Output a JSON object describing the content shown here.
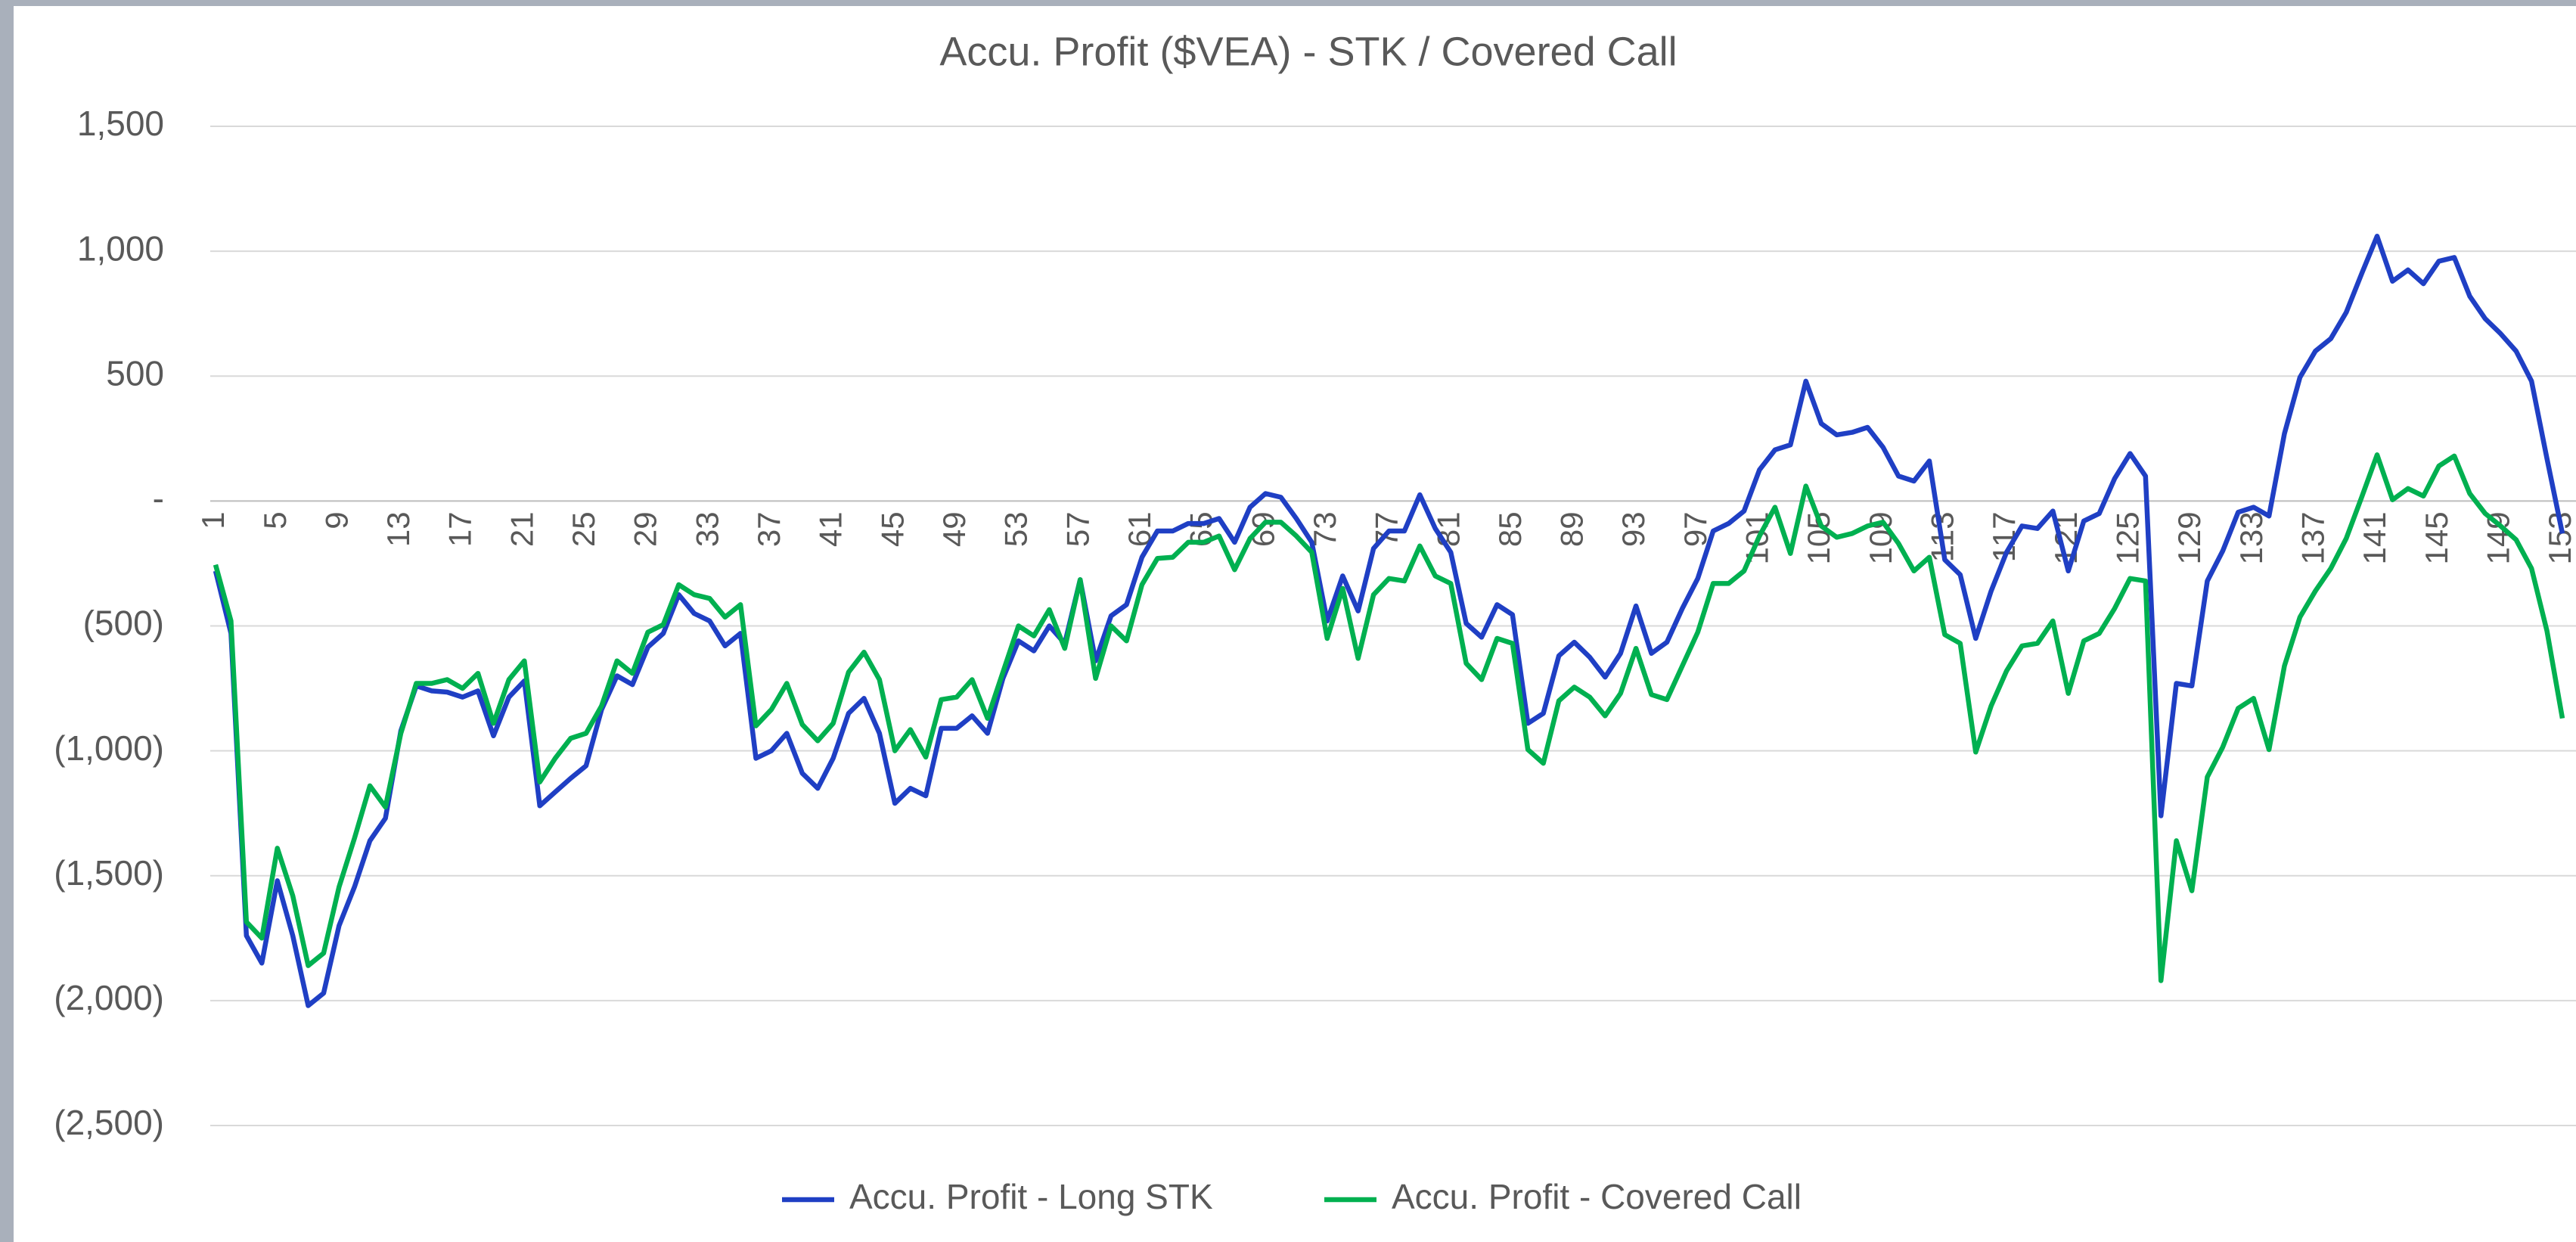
{
  "chart_data": {
    "type": "line",
    "title": "Accu. Profit ($VEA) - STK / Covered Call",
    "categories": [
      1,
      null,
      null,
      null,
      5,
      null,
      null,
      null,
      9,
      null,
      null,
      null,
      13,
      null,
      null,
      null,
      17,
      null,
      null,
      null,
      21,
      null,
      null,
      null,
      25,
      null,
      null,
      null,
      29,
      null,
      null,
      null,
      33,
      null,
      null,
      null,
      37,
      null,
      null,
      null,
      41,
      null,
      null,
      null,
      45,
      null,
      null,
      null,
      49,
      null,
      null,
      null,
      53,
      null,
      null,
      null,
      57,
      null,
      null,
      null,
      61,
      null,
      null,
      null,
      65,
      null,
      null,
      null,
      69,
      null,
      null,
      null,
      73,
      null,
      null,
      null,
      77,
      null,
      null,
      null,
      81,
      null,
      null,
      null,
      85,
      null,
      null,
      null,
      89,
      null,
      null,
      null,
      93,
      null,
      null,
      null,
      97,
      null,
      null,
      null,
      101,
      null,
      null,
      null,
      105,
      null,
      null,
      null,
      109,
      null,
      null,
      null,
      113,
      null,
      null,
      null,
      117,
      null,
      null,
      null,
      121,
      null,
      null,
      null,
      125,
      null,
      null,
      null,
      129,
      null,
      null,
      null,
      133,
      null,
      null,
      null,
      137,
      null,
      null,
      null,
      141,
      null,
      null,
      null,
      145,
      null,
      null,
      null,
      149,
      null,
      null,
      null,
      153
    ],
    "series": [
      {
        "name": "Accu. Profit - Long STK",
        "color": "#1f3fc4",
        "values": [
          -280,
          -530,
          -1740,
          -1850,
          -1520,
          -1740,
          -2020,
          -1970,
          -1700,
          -1545,
          -1360,
          -1270,
          -920,
          -740,
          -760,
          -765,
          -785,
          -760,
          -940,
          -785,
          -720,
          -1220,
          -1165,
          -1110,
          -1060,
          -835,
          -700,
          -735,
          -585,
          -530,
          -375,
          -450,
          -480,
          -580,
          -530,
          -1030,
          -1000,
          -930,
          -1090,
          -1150,
          -1030,
          -850,
          -790,
          -930,
          -1210,
          -1150,
          -1180,
          -910,
          -910,
          -860,
          -930,
          -710,
          -560,
          -600,
          -500,
          -570,
          -315,
          -640,
          -460,
          -415,
          -225,
          -120,
          -120,
          -90,
          -90,
          -70,
          -165,
          -25,
          30,
          15,
          -70,
          -165,
          -480,
          -300,
          -440,
          -190,
          -120,
          -120,
          25,
          -110,
          -205,
          -490,
          -545,
          -415,
          -455,
          -890,
          -850,
          -620,
          -565,
          -625,
          -705,
          -610,
          -420,
          -610,
          -565,
          -430,
          -310,
          -120,
          -90,
          -40,
          125,
          205,
          225,
          480,
          310,
          265,
          275,
          295,
          215,
          100,
          80,
          160,
          -235,
          -295,
          -550,
          -360,
          -205,
          -100,
          -110,
          -40,
          -280,
          -80,
          -50,
          90,
          190,
          100,
          -1260,
          -730,
          -740,
          -320,
          -200,
          -45,
          -25,
          -60,
          270,
          495,
          600,
          650,
          755,
          910,
          1060,
          880,
          925,
          870,
          960,
          975,
          820,
          730,
          670,
          600,
          480,
          170,
          -130
        ]
      },
      {
        "name": "Accu. Profit - Covered Call",
        "color": "#00b050",
        "values": [
          -255,
          -480,
          -1685,
          -1750,
          -1390,
          -1580,
          -1860,
          -1810,
          -1545,
          -1350,
          -1140,
          -1225,
          -930,
          -730,
          -730,
          -715,
          -750,
          -690,
          -890,
          -715,
          -640,
          -1125,
          -1030,
          -950,
          -930,
          -820,
          -640,
          -690,
          -525,
          -495,
          -335,
          -375,
          -390,
          -465,
          -415,
          -900,
          -835,
          -730,
          -895,
          -960,
          -890,
          -685,
          -605,
          -715,
          -1000,
          -915,
          -1025,
          -795,
          -785,
          -715,
          -870,
          -685,
          -500,
          -540,
          -435,
          -590,
          -315,
          -710,
          -500,
          -560,
          -335,
          -230,
          -225,
          -165,
          -165,
          -140,
          -275,
          -150,
          -85,
          -85,
          -140,
          -205,
          -550,
          -350,
          -630,
          -375,
          -310,
          -320,
          -180,
          -300,
          -330,
          -650,
          -715,
          -550,
          -570,
          -995,
          -1050,
          -800,
          -745,
          -785,
          -860,
          -770,
          -590,
          -775,
          -795,
          -660,
          -525,
          -330,
          -330,
          -280,
          -140,
          -25,
          -210,
          60,
          -100,
          -145,
          -130,
          -100,
          -85,
          -170,
          -280,
          -225,
          -535,
          -570,
          -1005,
          -820,
          -680,
          -580,
          -570,
          -480,
          -770,
          -560,
          -530,
          -430,
          -310,
          -320,
          -1920,
          -1360,
          -1560,
          -1105,
          -985,
          -830,
          -790,
          -995,
          -660,
          -465,
          -360,
          -270,
          -150,
          15,
          185,
          5,
          50,
          20,
          140,
          180,
          30,
          -50,
          -100,
          -155,
          -270,
          -520,
          -870
        ]
      }
    ],
    "ylim": [
      -2500,
      1500
    ],
    "yticks": [
      {
        "value": 1500,
        "label": "1,500"
      },
      {
        "value": 1000,
        "label": "1,000"
      },
      500,
      {
        "value": 0,
        "label": "-"
      },
      {
        "value": -500,
        "label": "(500)"
      },
      {
        "value": -1000,
        "label": "(1,000)"
      },
      {
        "value": -1500,
        "label": "(1,500)"
      },
      {
        "value": -2000,
        "label": "(2,000)"
      },
      {
        "value": -2500,
        "label": "(2,500)"
      }
    ],
    "grid": true,
    "legend": "bottom"
  }
}
